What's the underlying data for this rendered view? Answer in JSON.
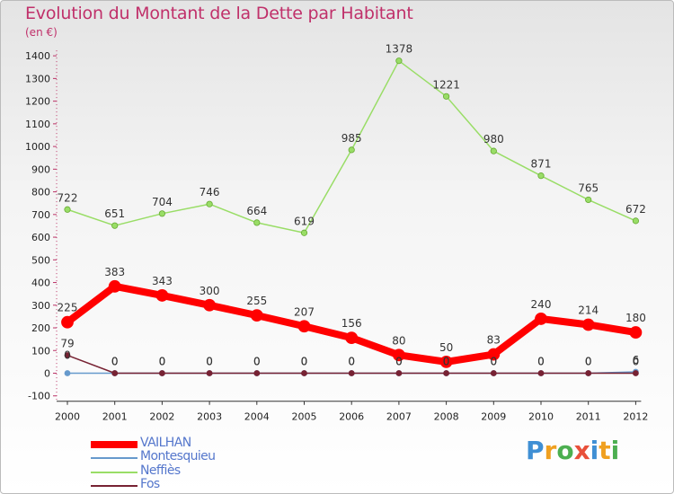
{
  "header": {
    "title": "Evolution du Montant de la Dette par Habitant",
    "subtitle": "(en €)"
  },
  "logo": {
    "text": "Proxiti",
    "colors": [
      "#3f8fd4",
      "#f0a020",
      "#4caf50",
      "#e8503a",
      "#3f8fd4",
      "#f0a020",
      "#4caf50"
    ]
  },
  "chart_data": {
    "type": "line",
    "title": "Evolution du Montant de la Dette par Habitant",
    "ylabel": "(en €)",
    "x": [
      "2000",
      "2001",
      "2002",
      "2003",
      "2004",
      "2005",
      "2006",
      "2007",
      "2008",
      "2009",
      "2010",
      "2011",
      "2012"
    ],
    "ylim": [
      -100,
      1400
    ],
    "yticks": [
      "-100",
      "0",
      "100",
      "200",
      "300",
      "400",
      "500",
      "600",
      "700",
      "800",
      "900",
      "1000",
      "1100",
      "1200",
      "1300",
      "1400"
    ],
    "legend_position": "bottom-left",
    "series": [
      {
        "name": "Neffiès",
        "color": "#99dd66",
        "values": [
          722,
          651,
          704,
          746,
          664,
          619,
          985,
          1378,
          1221,
          980,
          871,
          765,
          672
        ],
        "labels": [
          "722",
          "651",
          "704",
          "746",
          "664",
          "619",
          "985",
          "1378",
          "1221",
          "980",
          "871",
          "765",
          "672"
        ]
      },
      {
        "name": "VAILHAN",
        "color": "#ff0000",
        "values": [
          225,
          383,
          343,
          300,
          255,
          207,
          156,
          80,
          50,
          83,
          240,
          214,
          180
        ],
        "labels": [
          "225",
          "383",
          "343",
          "300",
          "255",
          "207",
          "156",
          "80",
          "50",
          "83",
          "240",
          "214",
          "180"
        ]
      },
      {
        "name": "Montesquieu",
        "color": "#6699cc",
        "values": [
          0,
          0,
          0,
          0,
          0,
          0,
          0,
          0,
          0,
          0,
          0,
          0,
          6
        ],
        "labels": [
          "0",
          "0",
          "0",
          "0",
          "0",
          "0",
          "0",
          "0",
          "0",
          "0",
          "0",
          "0",
          "6"
        ]
      },
      {
        "name": "Fos",
        "color": "#772233",
        "values": [
          79,
          0,
          0,
          0,
          0,
          0,
          0,
          0,
          0,
          0,
          0,
          0,
          0
        ],
        "labels": [
          "79",
          "0",
          "0",
          "0",
          "0",
          "0",
          "0",
          "0",
          "0",
          "0",
          "0",
          "0",
          "0"
        ]
      }
    ]
  }
}
